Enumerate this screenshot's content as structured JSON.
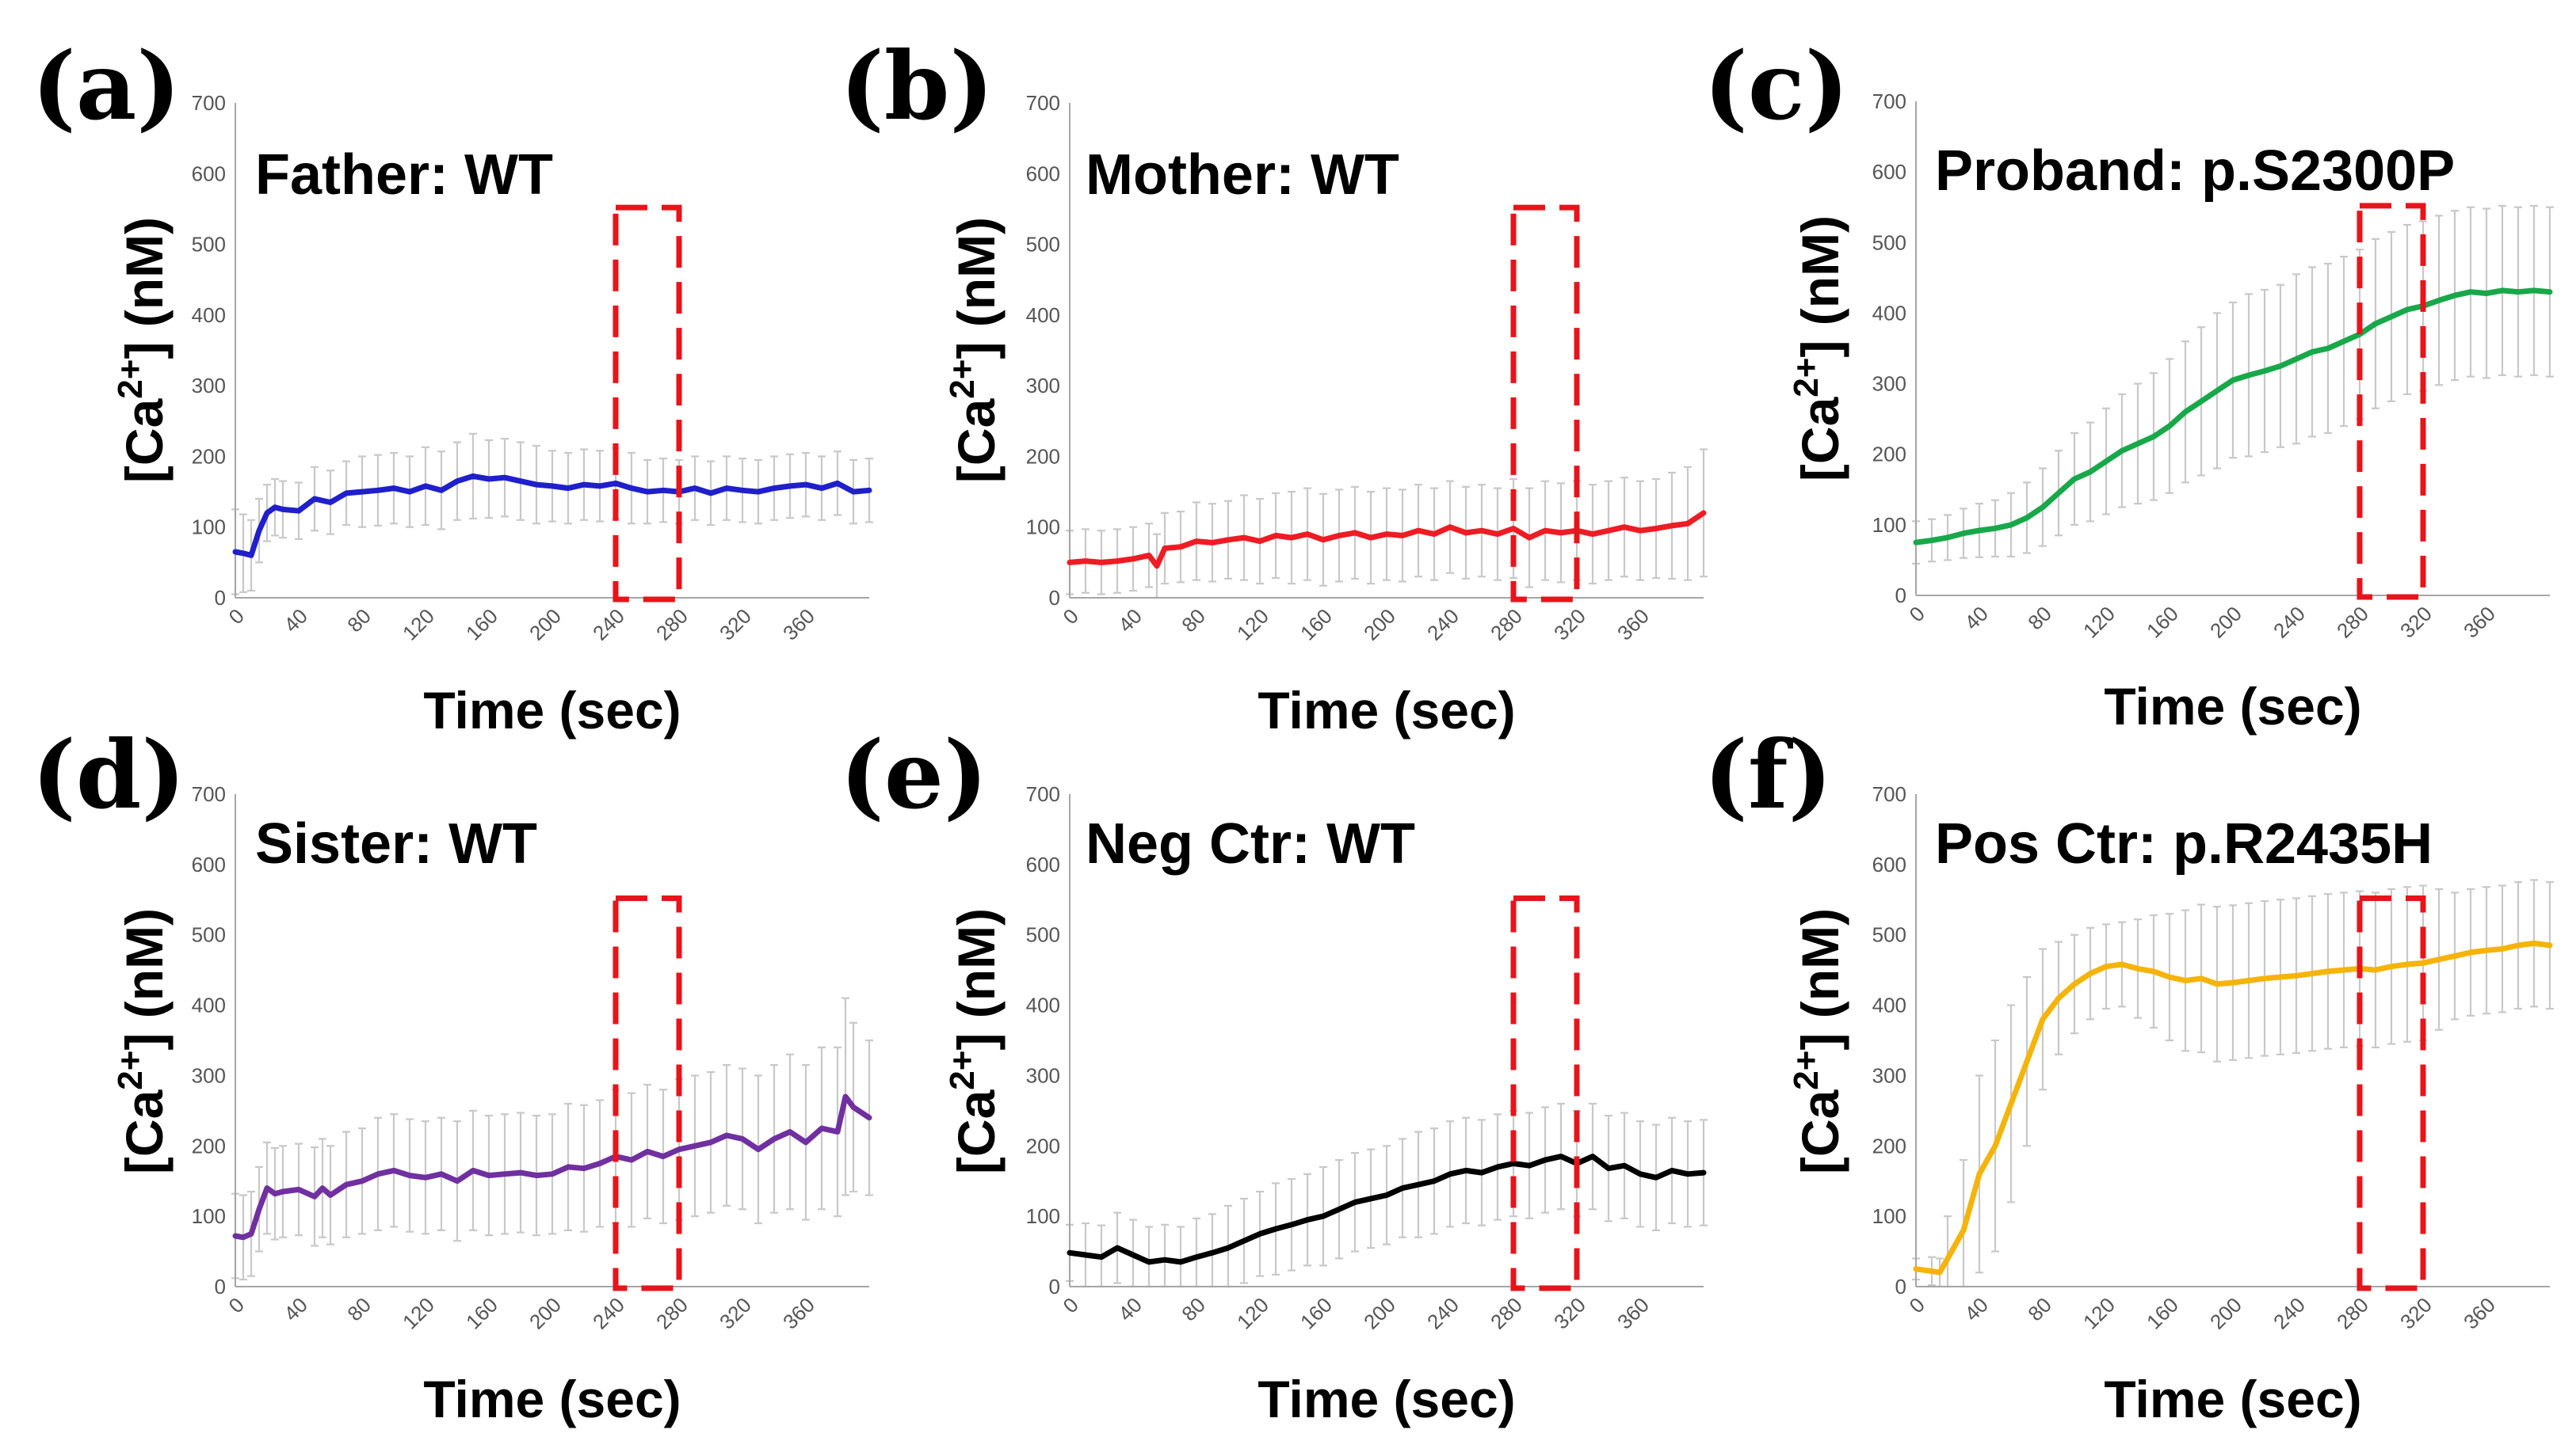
{
  "figure": {
    "shared_axes": {
      "ylabel_prefix": "[Ca",
      "ylabel_sup": "2+",
      "ylabel_suffix": "] (nM)",
      "xlabel": "Time (sec)",
      "ylim": [
        0,
        700
      ],
      "yticks": [
        "0",
        "100",
        "200",
        "300",
        "400",
        "500",
        "600",
        "700"
      ],
      "xlim": [
        0,
        400
      ],
      "xticks": [
        "0",
        "40",
        "80",
        "120",
        "160",
        "200",
        "240",
        "280",
        "320",
        "360"
      ]
    },
    "colors": {
      "highlight": "#e8141b",
      "errorbar": "#c8c8c8",
      "axis": "#a6a6a6"
    }
  },
  "chart_data": [
    {
      "type": "line",
      "panel": "(a)",
      "title": "Father: WT",
      "color": "#1f1fcc",
      "highlight_window": [
        240,
        280
      ],
      "x": [
        0,
        5,
        10,
        15,
        20,
        25,
        30,
        40,
        50,
        60,
        70,
        80,
        90,
        100,
        110,
        120,
        130,
        140,
        150,
        160,
        170,
        180,
        190,
        200,
        210,
        220,
        230,
        240,
        250,
        260,
        270,
        280,
        290,
        300,
        310,
        320,
        330,
        340,
        350,
        360,
        370,
        380,
        390,
        400
      ],
      "y": [
        65,
        63,
        60,
        95,
        120,
        128,
        125,
        123,
        140,
        135,
        148,
        150,
        152,
        155,
        150,
        158,
        152,
        165,
        172,
        168,
        170,
        165,
        160,
        158,
        155,
        160,
        158,
        162,
        155,
        150,
        152,
        150,
        155,
        148,
        155,
        152,
        150,
        155,
        158,
        160,
        155,
        162,
        150,
        152
      ],
      "err": [
        60,
        55,
        50,
        45,
        40,
        40,
        40,
        40,
        45,
        45,
        45,
        50,
        50,
        50,
        50,
        55,
        55,
        55,
        60,
        55,
        55,
        55,
        55,
        50,
        50,
        50,
        50,
        50,
        50,
        45,
        45,
        45,
        45,
        45,
        45,
        45,
        45,
        45,
        45,
        45,
        45,
        45,
        45,
        45
      ]
    },
    {
      "type": "line",
      "panel": "(b)",
      "title": "Mother: WT",
      "color": "#ee1c24",
      "highlight_window": [
        280,
        320
      ],
      "x": [
        0,
        10,
        20,
        30,
        40,
        50,
        55,
        60,
        70,
        80,
        90,
        100,
        110,
        120,
        130,
        140,
        150,
        160,
        170,
        180,
        190,
        200,
        210,
        220,
        230,
        240,
        250,
        260,
        270,
        280,
        290,
        300,
        310,
        320,
        330,
        340,
        350,
        360,
        370,
        380,
        390,
        400
      ],
      "y": [
        50,
        52,
        50,
        52,
        55,
        60,
        45,
        70,
        72,
        80,
        78,
        82,
        85,
        80,
        88,
        85,
        90,
        82,
        88,
        92,
        85,
        90,
        88,
        95,
        90,
        100,
        92,
        95,
        90,
        98,
        85,
        95,
        92,
        95,
        90,
        95,
        100,
        95,
        98,
        102,
        105,
        120
      ],
      "err": [
        45,
        45,
        45,
        45,
        45,
        45,
        45,
        50,
        50,
        55,
        55,
        55,
        60,
        60,
        60,
        65,
        65,
        65,
        65,
        65,
        65,
        65,
        65,
        65,
        65,
        65,
        65,
        65,
        65,
        70,
        70,
        70,
        70,
        70,
        70,
        70,
        70,
        70,
        70,
        75,
        80,
        90
      ]
    },
    {
      "type": "line",
      "panel": "(c)",
      "title": "Proband: p.S2300P",
      "color": "#18a84a",
      "highlight_window": [
        280,
        320
      ],
      "x": [
        0,
        10,
        20,
        30,
        40,
        50,
        60,
        70,
        80,
        90,
        100,
        110,
        120,
        130,
        140,
        150,
        160,
        170,
        180,
        190,
        200,
        210,
        220,
        230,
        240,
        250,
        260,
        270,
        280,
        290,
        300,
        310,
        320,
        330,
        340,
        350,
        360,
        370,
        380,
        390,
        400
      ],
      "y": [
        75,
        78,
        82,
        88,
        92,
        95,
        100,
        110,
        125,
        145,
        165,
        175,
        190,
        205,
        215,
        225,
        240,
        260,
        275,
        290,
        305,
        312,
        318,
        325,
        335,
        345,
        350,
        360,
        370,
        385,
        395,
        405,
        410,
        418,
        425,
        430,
        428,
        432,
        430,
        432,
        430
      ],
      "err": [
        30,
        30,
        32,
        35,
        38,
        40,
        45,
        50,
        55,
        60,
        65,
        70,
        75,
        80,
        85,
        90,
        95,
        100,
        105,
        110,
        110,
        115,
        115,
        115,
        120,
        120,
        120,
        120,
        120,
        120,
        120,
        120,
        120,
        120,
        120,
        120,
        120,
        120,
        120,
        120,
        120
      ]
    },
    {
      "type": "line",
      "panel": "(d)",
      "title": "Sister: WT",
      "color": "#7030a0",
      "highlight_window": [
        240,
        280
      ],
      "x": [
        0,
        5,
        10,
        15,
        20,
        25,
        30,
        40,
        50,
        55,
        60,
        70,
        80,
        90,
        100,
        110,
        120,
        130,
        140,
        150,
        160,
        170,
        180,
        190,
        200,
        210,
        220,
        230,
        240,
        250,
        260,
        270,
        280,
        290,
        300,
        310,
        320,
        330,
        340,
        350,
        360,
        370,
        380,
        385,
        390,
        400
      ],
      "y": [
        72,
        70,
        75,
        110,
        140,
        132,
        135,
        138,
        128,
        140,
        130,
        145,
        150,
        160,
        165,
        158,
        155,
        160,
        150,
        165,
        158,
        160,
        162,
        158,
        160,
        170,
        168,
        175,
        185,
        180,
        192,
        185,
        195,
        200,
        205,
        215,
        210,
        195,
        210,
        220,
        205,
        225,
        220,
        270,
        255,
        240
      ],
      "err": [
        60,
        60,
        60,
        60,
        65,
        65,
        65,
        65,
        70,
        70,
        70,
        75,
        75,
        80,
        80,
        80,
        80,
        80,
        85,
        85,
        85,
        85,
        85,
        85,
        85,
        90,
        90,
        90,
        95,
        95,
        95,
        95,
        100,
        100,
        100,
        100,
        100,
        105,
        105,
        110,
        110,
        115,
        120,
        140,
        120,
        110
      ]
    },
    {
      "type": "line",
      "panel": "(e)",
      "title": "Neg Ctr: WT",
      "color": "#000000",
      "highlight_window": [
        280,
        320
      ],
      "x": [
        0,
        10,
        20,
        30,
        40,
        50,
        60,
        70,
        80,
        90,
        100,
        110,
        120,
        130,
        140,
        150,
        160,
        170,
        180,
        190,
        200,
        210,
        220,
        230,
        240,
        250,
        260,
        270,
        280,
        290,
        300,
        310,
        320,
        330,
        340,
        350,
        360,
        370,
        380,
        390,
        400
      ],
      "y": [
        48,
        45,
        42,
        55,
        45,
        35,
        38,
        35,
        42,
        48,
        55,
        65,
        75,
        82,
        88,
        95,
        100,
        110,
        120,
        125,
        130,
        140,
        145,
        150,
        160,
        165,
        162,
        170,
        175,
        172,
        180,
        185,
        175,
        185,
        168,
        172,
        160,
        155,
        165,
        160,
        162
      ],
      "err": [
        40,
        45,
        45,
        50,
        50,
        50,
        50,
        50,
        55,
        55,
        60,
        60,
        60,
        65,
        65,
        65,
        70,
        70,
        70,
        70,
        70,
        70,
        75,
        75,
        75,
        75,
        75,
        75,
        75,
        75,
        75,
        75,
        75,
        75,
        75,
        75,
        75,
        75,
        75,
        75,
        75
      ]
    },
    {
      "type": "line",
      "panel": "(f)",
      "title": "Pos Ctr: p.R2435H",
      "color": "#f5b40a",
      "highlight_window": [
        280,
        320
      ],
      "x": [
        0,
        10,
        15,
        20,
        30,
        40,
        50,
        60,
        70,
        80,
        90,
        100,
        110,
        120,
        130,
        140,
        150,
        160,
        170,
        180,
        190,
        200,
        210,
        220,
        230,
        240,
        250,
        260,
        270,
        280,
        290,
        300,
        310,
        320,
        330,
        340,
        350,
        360,
        370,
        380,
        390,
        400
      ],
      "y": [
        25,
        22,
        20,
        40,
        80,
        160,
        200,
        260,
        320,
        380,
        410,
        430,
        445,
        455,
        458,
        452,
        448,
        440,
        435,
        438,
        430,
        432,
        435,
        438,
        440,
        442,
        445,
        448,
        450,
        452,
        450,
        455,
        458,
        460,
        465,
        470,
        475,
        478,
        480,
        485,
        488,
        485
      ],
      "err": [
        15,
        20,
        20,
        60,
        100,
        140,
        150,
        140,
        120,
        100,
        80,
        70,
        65,
        60,
        60,
        70,
        80,
        90,
        100,
        105,
        110,
        110,
        110,
        110,
        110,
        110,
        110,
        110,
        110,
        110,
        110,
        110,
        110,
        110,
        100,
        90,
        90,
        90,
        90,
        90,
        90,
        90
      ]
    }
  ]
}
